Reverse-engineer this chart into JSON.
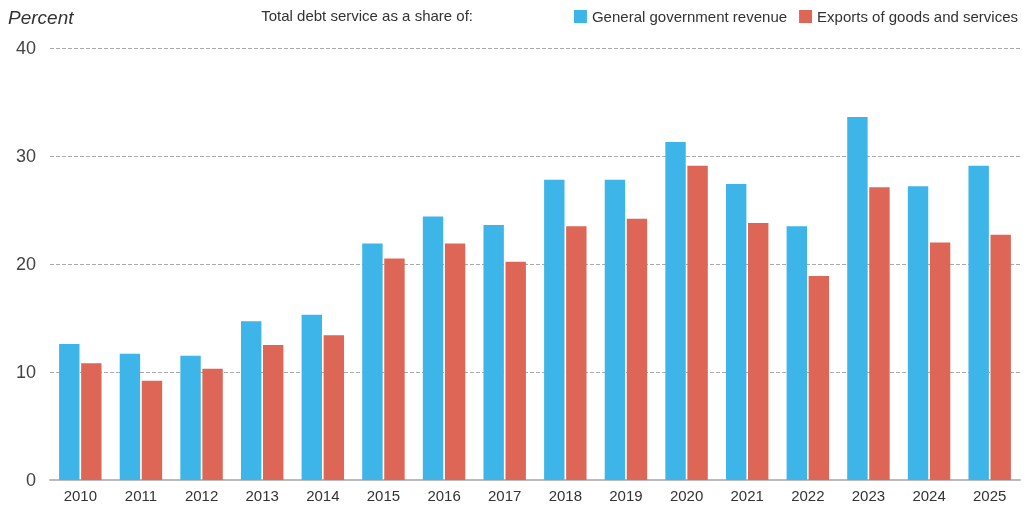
{
  "chart_data": {
    "type": "bar",
    "ylabel": "Percent",
    "legend_title": "Total debt service as a share of:",
    "categories": [
      "2010",
      "2011",
      "2012",
      "2013",
      "2014",
      "2015",
      "2016",
      "2017",
      "2018",
      "2019",
      "2020",
      "2021",
      "2022",
      "2023",
      "2024",
      "2025"
    ],
    "series": [
      {
        "name": "General government revenue",
        "color": "#3db5e8",
        "values": [
          12.6,
          11.7,
          11.5,
          14.7,
          15.3,
          21.9,
          24.4,
          23.6,
          27.8,
          27.8,
          31.3,
          27.4,
          23.5,
          33.6,
          27.2,
          29.1
        ]
      },
      {
        "name": "Exports of goods and services",
        "color": "#dd6657",
        "values": [
          10.8,
          9.2,
          10.3,
          12.5,
          13.4,
          20.5,
          21.9,
          20.2,
          23.5,
          24.2,
          29.1,
          23.8,
          18.9,
          27.1,
          22.0,
          22.7
        ]
      }
    ],
    "ylim": [
      0,
      40
    ],
    "yticks": [
      0,
      10,
      20,
      30,
      40
    ],
    "grid": "y",
    "legend": "top right"
  }
}
